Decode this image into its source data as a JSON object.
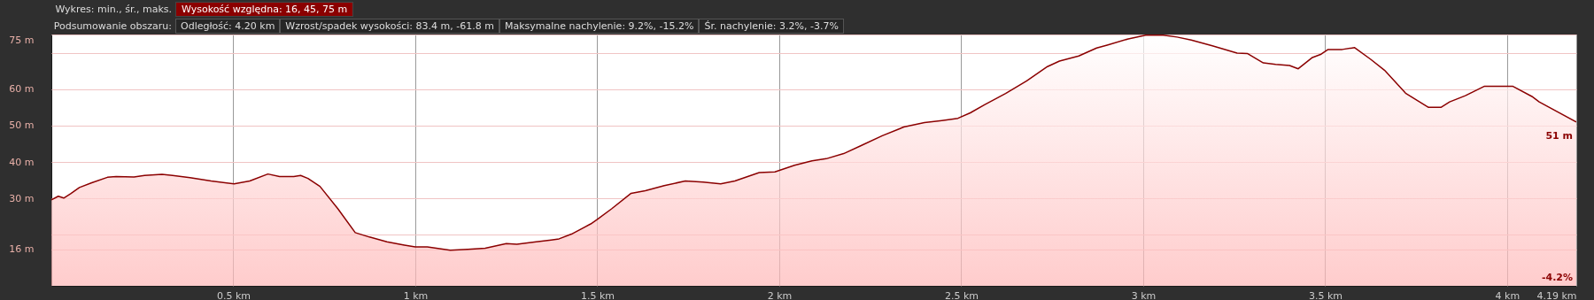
{
  "chart_data": {
    "type": "area",
    "color": "#8b0000",
    "x": [
      0,
      0.019,
      0.034,
      0.053,
      0.077,
      0.111,
      0.154,
      0.178,
      0.227,
      0.256,
      0.304,
      0.333,
      0.381,
      0.439,
      0.502,
      0.545,
      0.595,
      0.627,
      0.666,
      0.685,
      0.705,
      0.738,
      0.787,
      0.835,
      0.874,
      0.922,
      0.97,
      1.0,
      1.033,
      1.096,
      1.144,
      1.192,
      1.25,
      1.279,
      1.327,
      1.373,
      1.395,
      1.429,
      1.482,
      1.501,
      1.54,
      1.593,
      1.632,
      1.684,
      1.742,
      1.791,
      1.839,
      1.878,
      1.945,
      1.988,
      2.042,
      2.09,
      2.129,
      2.177,
      2.225,
      2.283,
      2.342,
      2.399,
      2.447,
      2.491,
      2.525,
      2.564,
      2.622,
      2.68,
      2.737,
      2.77,
      2.823,
      2.872,
      2.901,
      2.959,
      3.007,
      3.055,
      3.093,
      3.132,
      3.19,
      3.258,
      3.286,
      3.33,
      3.364,
      3.402,
      3.426,
      3.465,
      3.489,
      3.508,
      3.547,
      3.581,
      3.625,
      3.663,
      3.721,
      3.784,
      3.818,
      3.842,
      3.885,
      3.938,
      3.972,
      4.015,
      4.068,
      4.088,
      4.19
    ],
    "values": [
      29.6,
      30.6,
      30.1,
      31.3,
      33.0,
      34.3,
      35.8,
      36.0,
      35.9,
      36.3,
      36.6,
      36.3,
      35.7,
      34.8,
      34.0,
      34.8,
      36.7,
      36.0,
      36.0,
      36.3,
      35.5,
      33.3,
      27.2,
      20.6,
      19.4,
      18.1,
      17.2,
      16.7,
      16.7,
      15.8,
      16.0,
      16.3,
      17.6,
      17.4,
      18.0,
      18.6,
      18.9,
      20.2,
      23.0,
      24.3,
      27.2,
      31.4,
      32.1,
      33.5,
      34.8,
      34.5,
      34.0,
      34.8,
      37.1,
      37.3,
      39.1,
      40.3,
      40.9,
      42.3,
      44.5,
      47.2,
      49.6,
      50.8,
      51.4,
      52.0,
      53.5,
      55.7,
      58.8,
      62.3,
      66.2,
      67.7,
      69.1,
      71.3,
      72.1,
      73.8,
      74.8,
      74.8,
      74.3,
      73.5,
      71.9,
      69.9,
      69.8,
      67.2,
      66.8,
      66.5,
      65.6,
      68.7,
      69.6,
      70.9,
      70.9,
      71.4,
      68.2,
      65.2,
      58.9,
      55.0,
      55.0,
      56.5,
      58.2,
      60.8,
      60.8,
      60.8,
      58.0,
      56.5,
      51
    ],
    "xlim": [
      0,
      4.19
    ],
    "xticks": [
      {
        "value": 0.5,
        "label": "0.5 km"
      },
      {
        "value": 1,
        "label": "1 km"
      },
      {
        "value": 1.5,
        "label": "1.5 km"
      },
      {
        "value": 2,
        "label": "2 km"
      },
      {
        "value": 2.5,
        "label": "2.5 km"
      },
      {
        "value": 3,
        "label": "3 km"
      },
      {
        "value": 3.5,
        "label": "3.5 km"
      },
      {
        "value": 4,
        "label": "4 km"
      },
      {
        "value": 4.19,
        "label": "4.19 km"
      }
    ],
    "ylim": [
      6,
      75
    ],
    "yticks": [
      {
        "value": 75,
        "label": "75 m"
      },
      {
        "value": 70,
        "label": null
      },
      {
        "value": 60,
        "label": "60 m"
      },
      {
        "value": 50,
        "label": "50 m"
      },
      {
        "value": 40,
        "label": "40 m"
      },
      {
        "value": 30,
        "label": "30 m"
      },
      {
        "value": 20,
        "label": null
      },
      {
        "value": 16,
        "label": "16 m"
      }
    ],
    "grid": true,
    "annotations": [
      "Wykres: min., śr., maks.",
      "Wysokość względna: 16, 45, 75 m",
      "Podsumowanie obszaru:",
      "Odległość: 4.20 km",
      "Wzrost/spadek wysokości: 83.4 m, -61.8 m",
      "Maksymalne nachylenie: 9.2%, -15.2%",
      "Śr. nachylenie: 3.2%, -3.7%",
      {
        "text": "51 m",
        "x": 4.19,
        "y": 51
      },
      "-4.2%"
    ]
  }
}
